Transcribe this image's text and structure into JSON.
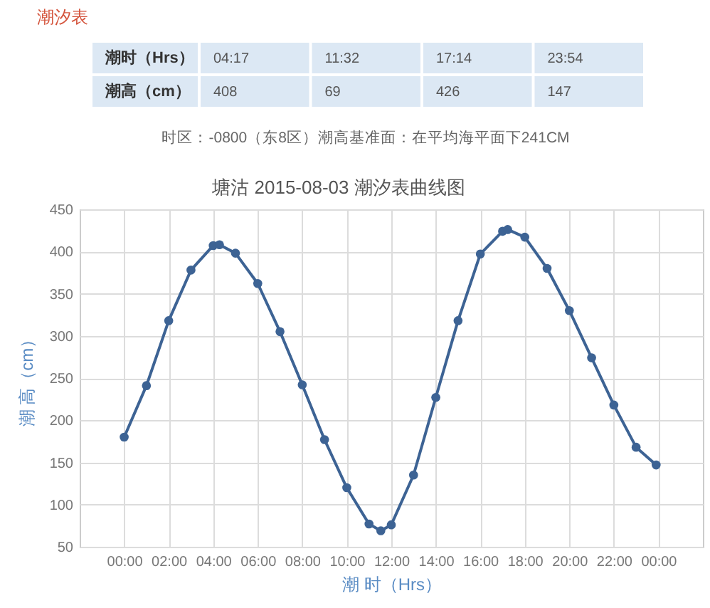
{
  "chart_data": [
    {
      "type": "other",
      "title": "潮汐表",
      "annotations": [
        "潮时（Hrs）",
        "04:17",
        "11:32",
        "17:14",
        "23:54",
        "潮高（cm）",
        "408",
        "69",
        "426",
        "147",
        "时区：-0800（东8区）潮高基准面：在平均海平面下241CM"
      ]
    },
    {
      "type": "line",
      "title": "塘沽 2015-08-03 潮汐表曲线图",
      "xlabel": "潮 时（Hrs）",
      "ylabel": "潮 高（cm）",
      "x": [
        0,
        1,
        2,
        3,
        4,
        4.28,
        5,
        6,
        7,
        8,
        9,
        10,
        11,
        11.53,
        12,
        13,
        14,
        15,
        16,
        17,
        17.23,
        18,
        19,
        20,
        21,
        22,
        23,
        23.9
      ],
      "series": [
        {
          "color": "#3d6394",
          "values": [
            180,
            241,
            318,
            378,
            407,
            408,
            398,
            362,
            305,
            242,
            177,
            120,
            77,
            69,
            76,
            135,
            227,
            318,
            397,
            424,
            426,
            417,
            380,
            330,
            274,
            218,
            168,
            147
          ]
        }
      ],
      "xlim": [
        -2,
        26
      ],
      "xticks": [
        {
          "value": 0,
          "label": "00:00"
        },
        {
          "value": 2,
          "label": "02:00"
        },
        {
          "value": 4,
          "label": "04:00"
        },
        {
          "value": 6,
          "label": "06:00"
        },
        {
          "value": 8,
          "label": "08:00"
        },
        {
          "value": 10,
          "label": "10:00"
        },
        {
          "value": 12,
          "label": "12:00"
        },
        {
          "value": 14,
          "label": "14:00"
        },
        {
          "value": 16,
          "label": "16:00"
        },
        {
          "value": 18,
          "label": "18:00"
        },
        {
          "value": 20,
          "label": "20:00"
        },
        {
          "value": 22,
          "label": "22:00"
        },
        {
          "value": 24,
          "label": "00:00"
        }
      ],
      "ylim": [
        50,
        450
      ],
      "yticks": [
        50,
        100,
        150,
        200,
        250,
        300,
        350,
        400,
        450
      ],
      "grid": true,
      "marker": "circle",
      "line_style": "solid"
    }
  ]
}
